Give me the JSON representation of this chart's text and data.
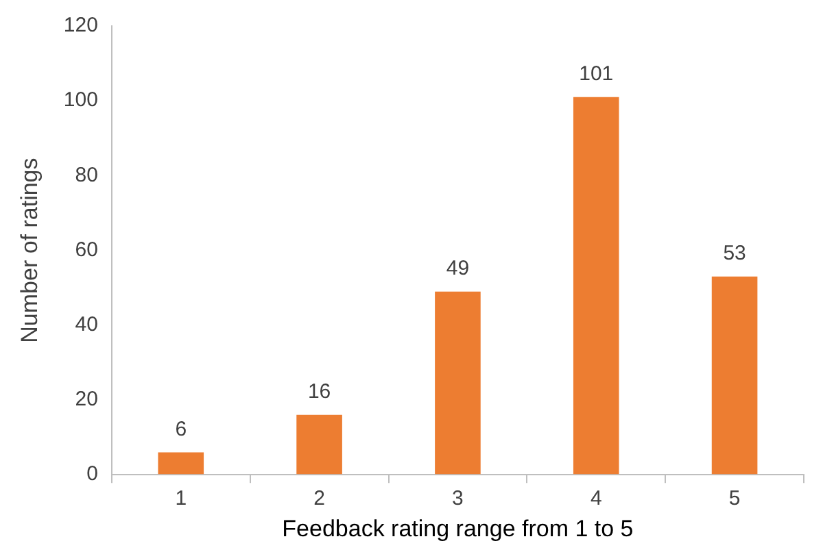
{
  "chart_data": {
    "type": "bar",
    "xlabel": "Feedback rating range from 1 to 5",
    "ylabel": "Number of ratings",
    "categories": [
      "1",
      "2",
      "3",
      "4",
      "5"
    ],
    "values": [
      6,
      16,
      49,
      101,
      53
    ],
    "color": "#ed7d31",
    "ylim": [
      0,
      120
    ],
    "yticks": [
      0,
      20,
      40,
      60,
      80,
      100,
      120
    ],
    "data_labels": true
  }
}
